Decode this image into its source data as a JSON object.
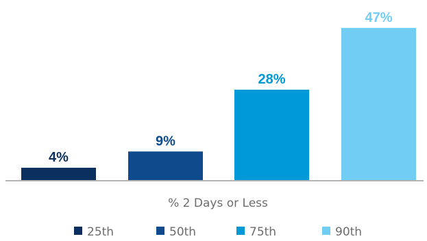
{
  "chart_data": {
    "type": "bar",
    "title": "",
    "xlabel": "% 2 Days or Less",
    "ylabel": "",
    "ylim": [
      0,
      50
    ],
    "grid": false,
    "legend_position": "bottom",
    "value_suffix": "%",
    "series": [
      {
        "name": "25th",
        "value": 4,
        "color": "#0b2f5e",
        "label_color": "#0b2f5e"
      },
      {
        "name": "50th",
        "value": 9,
        "color": "#0f4b8c",
        "label_color": "#0f4b8c"
      },
      {
        "name": "75th",
        "value": 28,
        "color": "#0099d8",
        "label_color": "#0099d8"
      },
      {
        "name": "90th",
        "value": 47,
        "color": "#72cdf4",
        "label_color": "#72cdf4"
      }
    ]
  }
}
